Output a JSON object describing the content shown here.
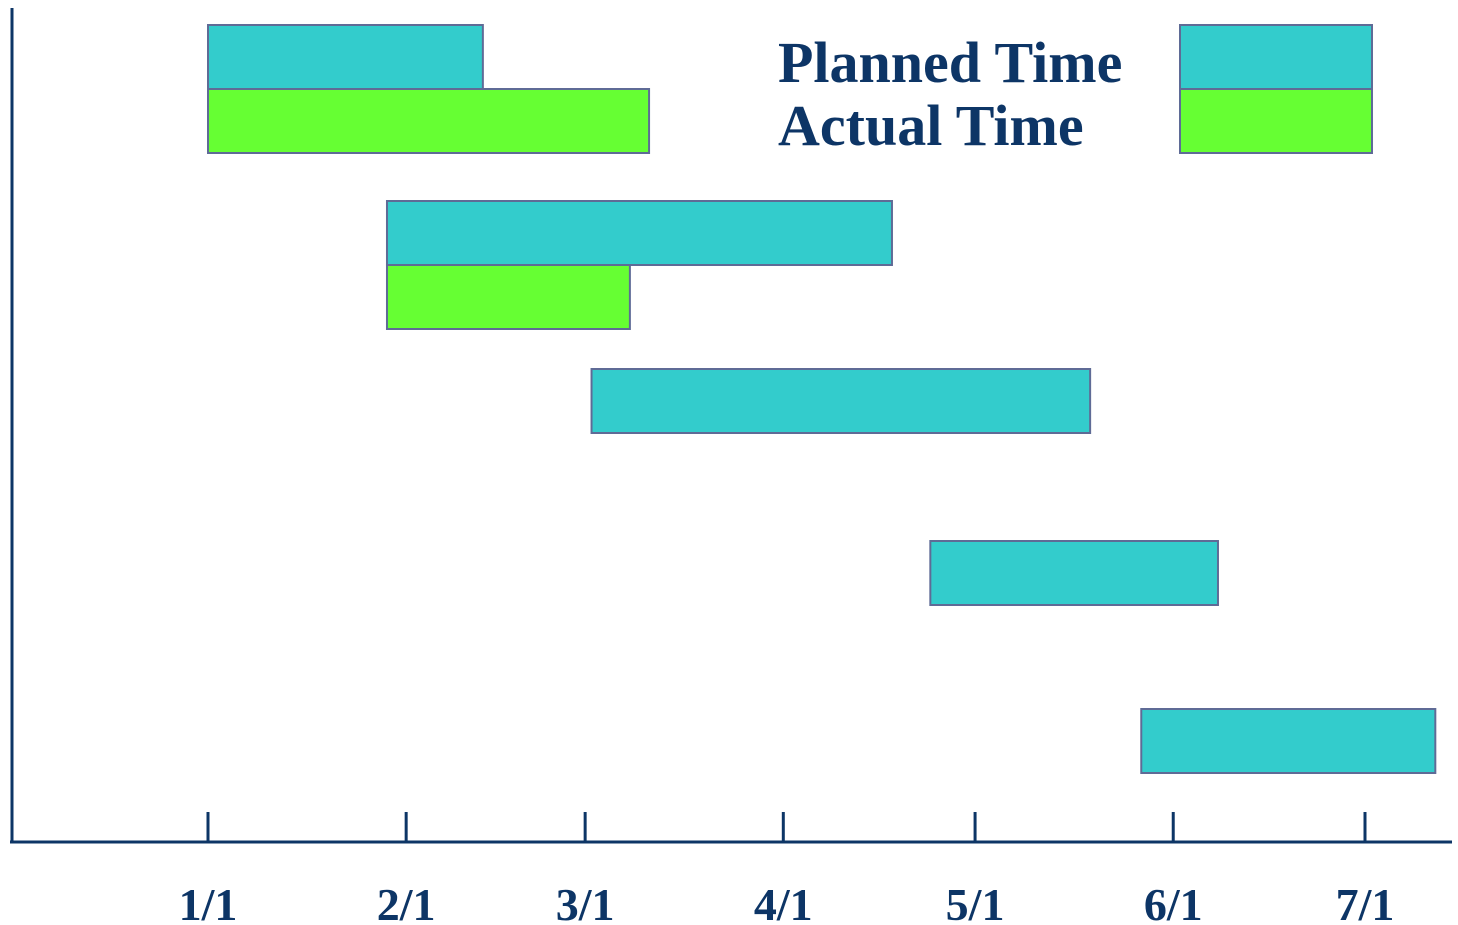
{
  "chart_data": {
    "type": "gantt",
    "title": "",
    "xlabel": "",
    "ylabel": "",
    "x_ticks": [
      "1/1",
      "2/1",
      "3/1",
      "4/1",
      "5/1",
      "6/1",
      "7/1"
    ],
    "x_tick_dates": [
      "01-01",
      "02-01",
      "03-01",
      "04-01",
      "05-01",
      "06-01",
      "07-01"
    ],
    "xlim": [
      "12-05",
      "07-21"
    ],
    "grid": false,
    "legend_placement": "top-right",
    "series": [
      {
        "name": "Planned Time",
        "color": "#33cccc"
      },
      {
        "name": "Actual Time",
        "color": "#66ff33"
      }
    ],
    "tasks": [
      {
        "planned": [
          "01-01",
          "02-13"
        ],
        "actual": [
          "01-01",
          "03-11"
        ]
      },
      {
        "planned": [
          "01-29",
          "04-18"
        ],
        "actual": [
          "01-29",
          "03-08"
        ]
      },
      {
        "planned": [
          "03-02",
          "05-19"
        ],
        "actual": null
      },
      {
        "planned": [
          "04-24",
          "06-08"
        ],
        "actual": null
      },
      {
        "planned": [
          "05-27",
          "07-12"
        ],
        "actual": null
      }
    ]
  }
}
